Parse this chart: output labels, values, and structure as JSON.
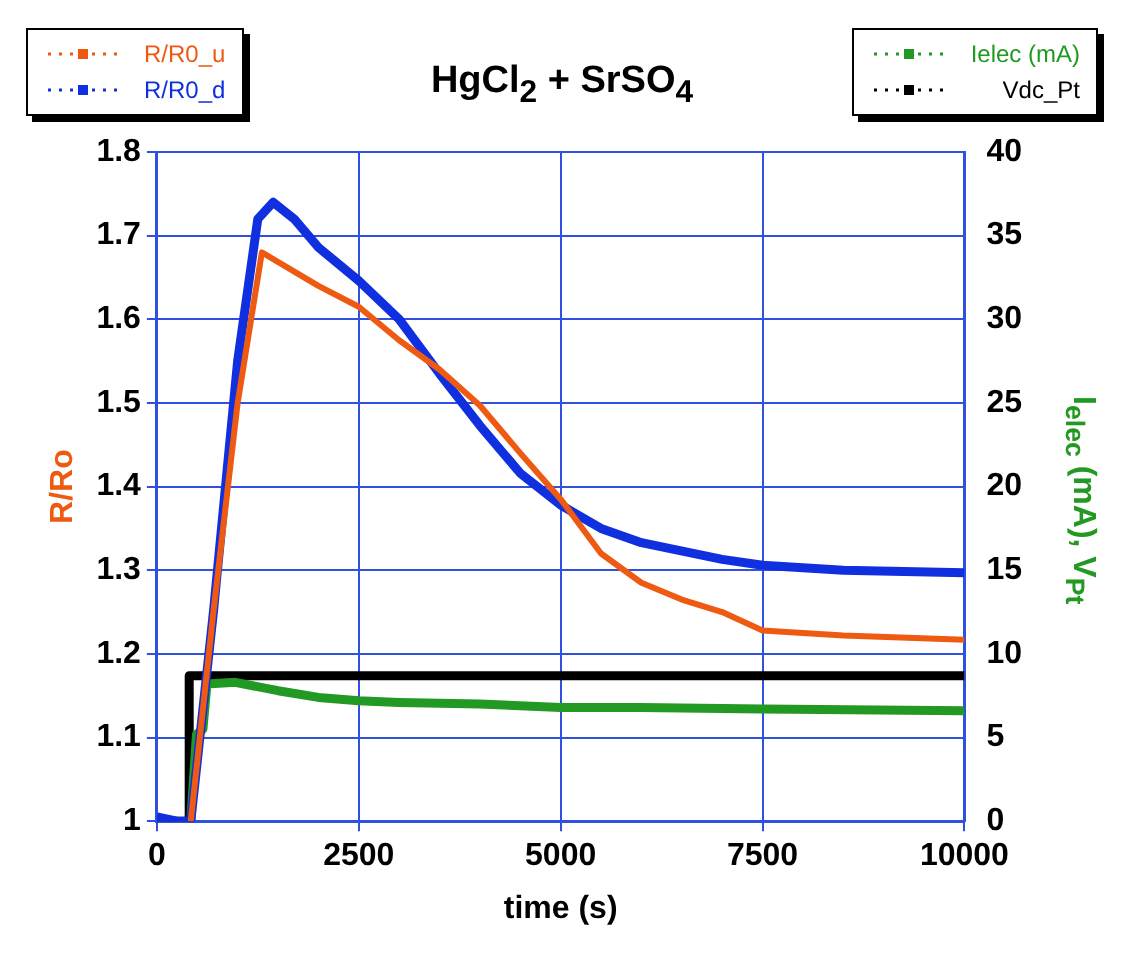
{
  "chart_data": {
    "type": "line",
    "title": "HgCl$_{2}$ + SrSO$_{4}$",
    "xlabel": "time (s)",
    "ylabel": "R/Ro",
    "y2label": "I$_{elec}$ (mA), V$_{Pt}$",
    "xlim": [
      0,
      10000
    ],
    "xticks": [
      0,
      2500,
      5000,
      7500,
      10000
    ],
    "ylim": [
      1,
      1.8
    ],
    "yticks": [
      1,
      1.1,
      1.2,
      1.3,
      1.4,
      1.5,
      1.6,
      1.7,
      1.8
    ],
    "y2lim": [
      0,
      40
    ],
    "y2ticks": [
      0,
      5,
      10,
      15,
      20,
      25,
      30,
      35,
      40
    ],
    "grid": true,
    "legend": "top",
    "marker": "none",
    "line_style": "solid",
    "series": [
      {
        "name": "R/R0_u",
        "color": "#ee5a12",
        "axis": "y",
        "x": [
          420,
          700,
          1000,
          1300,
          2000,
          2500,
          3000,
          3500,
          4000,
          4500,
          5000,
          5500,
          6000,
          6500,
          7000,
          7500,
          8500,
          10000
        ],
        "values": [
          1.0,
          1.25,
          1.5,
          1.68,
          1.64,
          1.615,
          1.575,
          1.54,
          1.497,
          1.44,
          1.385,
          1.32,
          1.285,
          1.265,
          1.25,
          1.228,
          1.222,
          1.217
        ]
      },
      {
        "name": "R/R0_d",
        "color": "#1030e0",
        "axis": "y",
        "x": [
          0,
          250,
          420,
          700,
          1000,
          1250,
          1440,
          1700,
          2000,
          2500,
          3000,
          3500,
          4000,
          4500,
          5000,
          5500,
          6000,
          7000,
          7500,
          8500,
          10000
        ],
        "values": [
          1.005,
          1.0,
          1.0,
          1.25,
          1.55,
          1.72,
          1.74,
          1.72,
          1.686,
          1.646,
          1.6,
          1.535,
          1.473,
          1.416,
          1.378,
          1.35,
          1.333,
          1.313,
          1.306,
          1.3,
          1.297
        ]
      },
      {
        "name": "Ielec (mA)",
        "color": "#229922",
        "axis": "y2",
        "x": [
          420,
          490,
          570,
          620,
          970,
          1500,
          2000,
          2500,
          3000,
          4000,
          5000,
          6000,
          7500,
          10000
        ],
        "values": [
          0,
          5.2,
          5.5,
          8.2,
          8.3,
          7.8,
          7.4,
          7.2,
          7.1,
          7.0,
          6.8,
          6.8,
          6.7,
          6.6
        ]
      },
      {
        "name": "Vdc_Pt",
        "color": "#000000",
        "axis": "y2",
        "x": [
          0,
          400,
          400,
          10000
        ],
        "values": [
          0,
          0,
          8.7,
          8.7
        ]
      }
    ]
  }
}
